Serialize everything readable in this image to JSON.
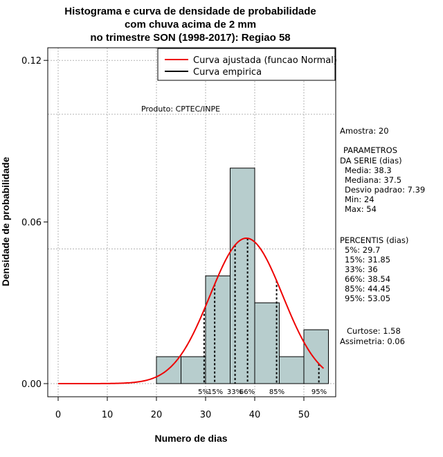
{
  "chart_data": {
    "type": "histogram",
    "title_lines": [
      "Histograma e curva de densidade de probabilidade",
      "com chuva acima de 2 mm",
      "no trimestre SON (1998-2017): Regiao 58"
    ],
    "xlabel": "Numero de dias",
    "ylabel": "Densidade de probabilidade",
    "xlim": [
      -2,
      56
    ],
    "ylim": [
      -0.0045,
      0.124
    ],
    "xticks": [
      "0",
      "10",
      "20",
      "30",
      "40",
      "50"
    ],
    "xtick_values": [
      0,
      10,
      20,
      30,
      40,
      50
    ],
    "yticks": [
      "0.00",
      "0.06",
      "0.12"
    ],
    "ytick_values": [
      0.0,
      0.06,
      0.12
    ],
    "hgrid_values": [
      0.0,
      0.05,
      0.1,
      0.12
    ],
    "bins": [
      {
        "start": 20,
        "end": 25,
        "density": 0.01
      },
      {
        "start": 25,
        "end": 30,
        "density": 0.01
      },
      {
        "start": 30,
        "end": 35,
        "density": 0.04
      },
      {
        "start": 35,
        "end": 40,
        "density": 0.08
      },
      {
        "start": 40,
        "end": 45,
        "density": 0.03
      },
      {
        "start": 45,
        "end": 50,
        "density": 0.01
      },
      {
        "start": 50,
        "end": 55,
        "density": 0.02
      }
    ],
    "bar_color": "#b7cdcd",
    "normal_curve": {
      "mean": 38.3,
      "sd": 7.39,
      "x_from": 0,
      "x_to": 54,
      "color": "#ee0000"
    },
    "percentiles": [
      {
        "label": "5%",
        "value": 29.7
      },
      {
        "label": "15%",
        "value": 31.85
      },
      {
        "label": "33%",
        "value": 36
      },
      {
        "label": "66%",
        "value": 38.54
      },
      {
        "label": "85%",
        "value": 44.45
      },
      {
        "label": "95%",
        "value": 53.05
      }
    ],
    "legend": {
      "position": "top-right",
      "entries": [
        {
          "label": "Curva ajustada (funcao Normal)",
          "color": "#ee0000"
        },
        {
          "label": "Curva empirica",
          "color": "#000000"
        }
      ]
    },
    "annotation": "Produto: CPTEC/INPE",
    "stats": {
      "amostra": "Amostra: 20",
      "param_header_1": "PARAMETROS",
      "param_header_2": "DA SERIE (dias)",
      "media": "Media: 38.3",
      "mediana": "Mediana: 37.5",
      "desvio": "Desvio padrao: 7.39",
      "min": "Min: 24",
      "max": "Max: 54",
      "pct_header": "PERCENTIS (dias)",
      "p5": "5%: 29.7",
      "p15": "15%: 31.85",
      "p33": "33%: 36",
      "p66": "66%: 38.54",
      "p85": "85%: 44.45",
      "p95": "95%: 53.05",
      "curtose": "Curtose: 1.58",
      "assimetria": "Assimetria: 0.06"
    }
  }
}
